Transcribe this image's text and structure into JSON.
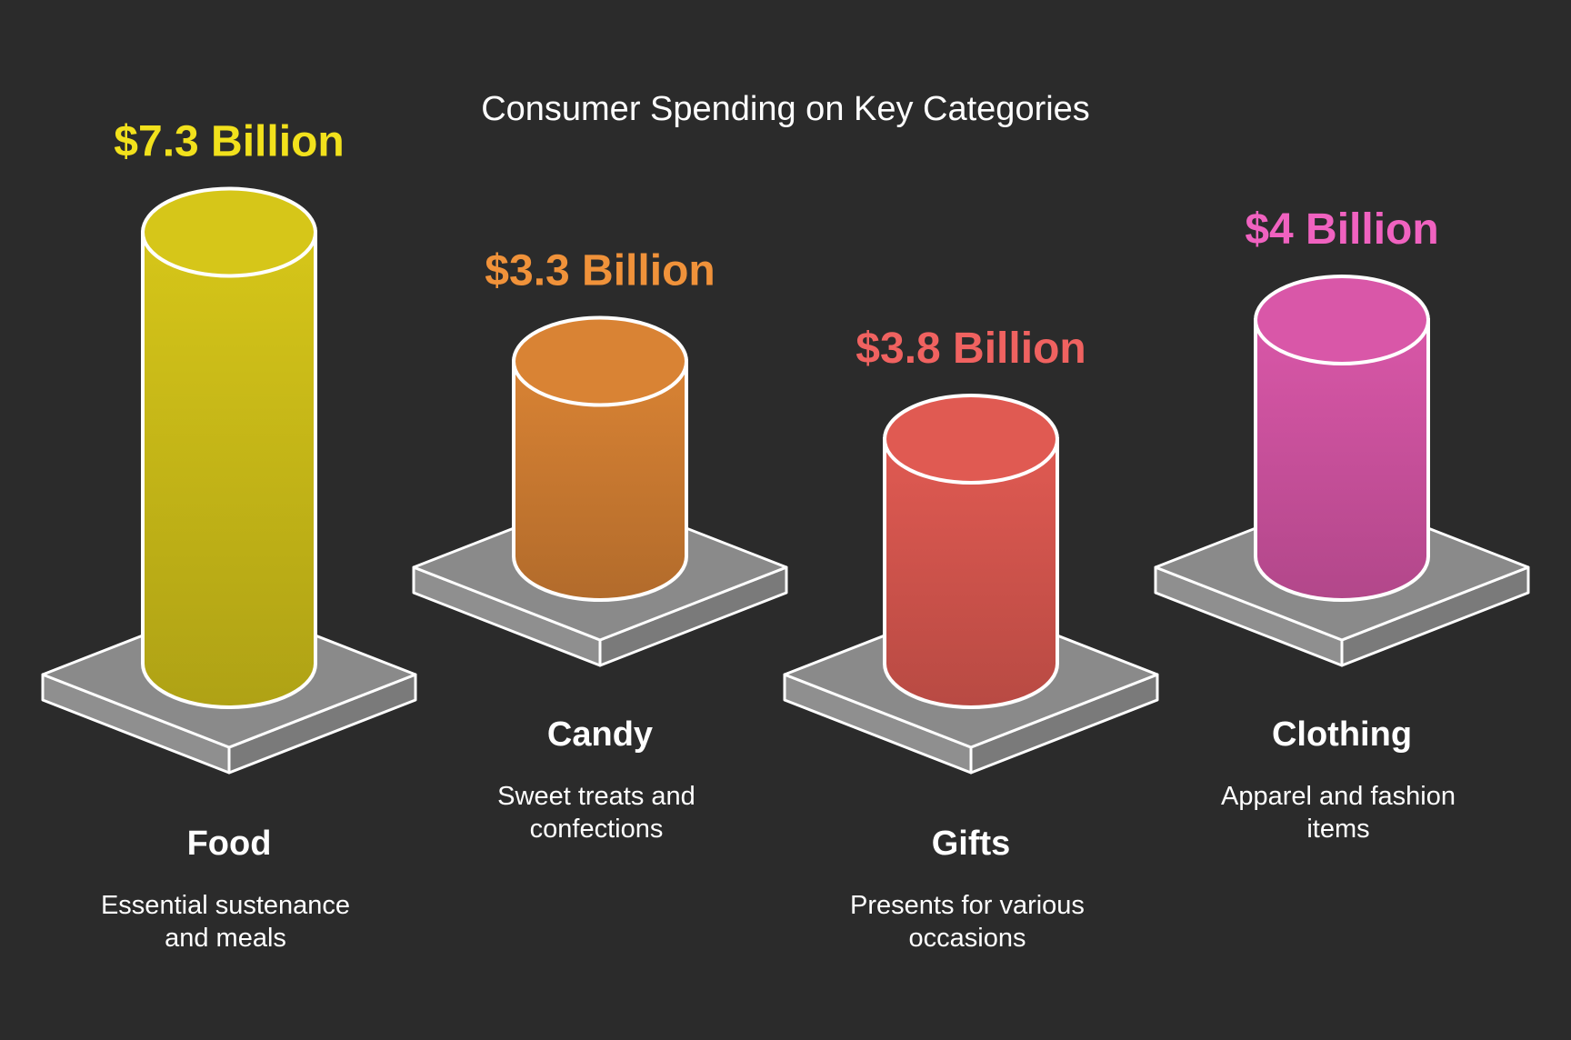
{
  "chart_data": {
    "type": "bar",
    "title": "Consumer Spending on Key Categories",
    "categories": [
      "Food",
      "Candy",
      "Gifts",
      "Clothing"
    ],
    "values": [
      7.3,
      3.3,
      3.8,
      4
    ],
    "value_labels": [
      "$7.3 Billion",
      "$3.3 Billion",
      "$3.8 Billion",
      "$4 Billion"
    ],
    "descriptions": [
      [
        "Essential sustenance",
        "and meals"
      ],
      [
        "Sweet treats and",
        "confections"
      ],
      [
        "Presents for various",
        "occasions"
      ],
      [
        "Apparel and fashion",
        "items"
      ]
    ],
    "colors": [
      "#d6c619",
      "#d98334",
      "#e05a52",
      "#d957a8"
    ],
    "label_colors": [
      "#f2e11c",
      "#f0923a",
      "#f06260",
      "#f062c0"
    ],
    "unit": "Billion USD",
    "xlabel": "",
    "ylabel": ""
  }
}
